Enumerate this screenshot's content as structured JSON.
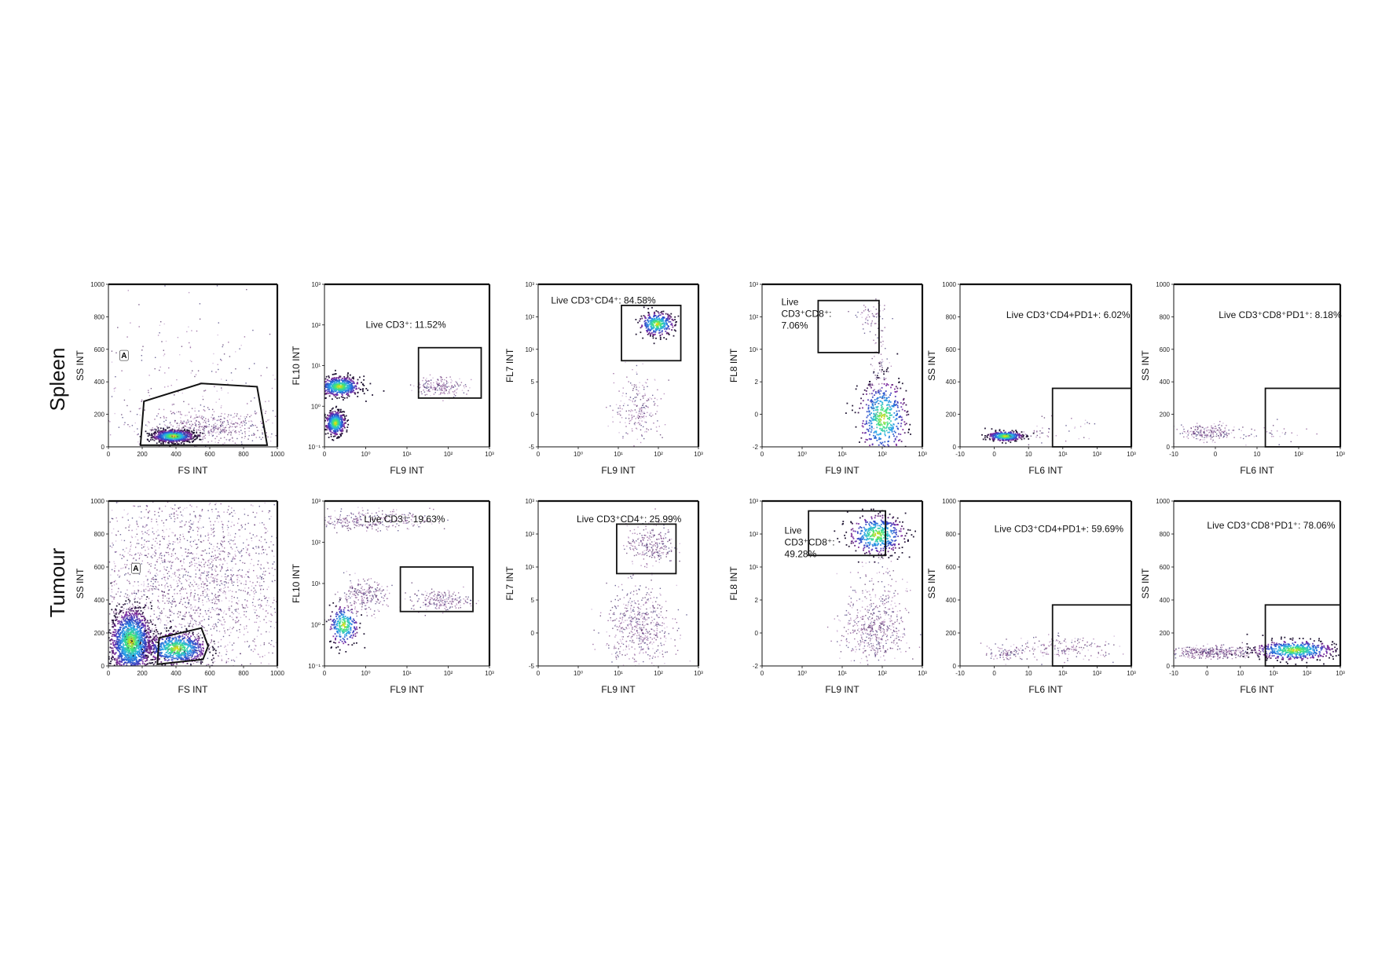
{
  "rows": [
    {
      "label": "Spleen"
    },
    {
      "label": "Tumour"
    }
  ],
  "chart_data": [
    {
      "type": "scatter",
      "row": "Spleen",
      "panel": 1,
      "xlabel": "FS INT",
      "ylabel": "SS INT",
      "x_ticks": [
        "0",
        "200",
        "400",
        "600",
        "800",
        "1000"
      ],
      "y_ticks": [
        "0",
        "200",
        "400",
        "600",
        "800",
        "1000"
      ],
      "xlim": [
        0,
        1000
      ],
      "ylim": [
        0,
        1000
      ],
      "gate_label": "A",
      "gate_text": "",
      "clusters": [
        {
          "x": 380,
          "y": 70,
          "spread": [
            60,
            18
          ],
          "n": 900,
          "dense": true
        },
        {
          "x": 600,
          "y": 120,
          "spread": [
            200,
            50
          ],
          "n": 500,
          "dense": false
        },
        {
          "x": 500,
          "y": 350,
          "spread": [
            350,
            250
          ],
          "n": 250,
          "dense": false
        }
      ]
    },
    {
      "type": "scatter",
      "row": "Spleen",
      "panel": 2,
      "xlabel": "FL9 INT",
      "ylabel": "FL10 INT",
      "x_ticks": [
        "0",
        "10⁰",
        "10¹",
        "10²",
        "10³"
      ],
      "y_ticks": [
        "10⁻¹",
        "10⁰",
        "10¹",
        "10²",
        "10³"
      ],
      "xlim": [
        0,
        4
      ],
      "ylim": [
        0,
        4
      ],
      "gate_label": "",
      "gate_text": "Live CD3⁺: 11.52%",
      "clusters": [
        {
          "x": 0.35,
          "y": 1.5,
          "spread": [
            0.25,
            0.12
          ],
          "n": 600,
          "dense": true
        },
        {
          "x": 0.25,
          "y": 0.6,
          "spread": [
            0.12,
            0.15
          ],
          "n": 450,
          "dense": true
        },
        {
          "x": 2.8,
          "y": 1.5,
          "spread": [
            0.3,
            0.12
          ],
          "n": 200,
          "dense": false
        }
      ]
    },
    {
      "type": "scatter",
      "row": "Spleen",
      "panel": 3,
      "xlabel": "FL9 INT",
      "ylabel": "FL7 INT",
      "x_ticks": [
        "0",
        "10⁰",
        "10¹",
        "10²",
        "10³"
      ],
      "y_ticks": [
        "-5",
        "0",
        "5",
        "10¹",
        "10²",
        "10³"
      ],
      "xlim": [
        0,
        4
      ],
      "ylim": [
        0,
        5
      ],
      "gate_label": "",
      "gate_text": "Live CD3⁺CD4⁺: 84.58%",
      "clusters": [
        {
          "x": 2.95,
          "y": 3.8,
          "spread": [
            0.22,
            0.18
          ],
          "n": 350,
          "dense": true
        },
        {
          "x": 2.5,
          "y": 1.2,
          "spread": [
            0.3,
            0.5
          ],
          "n": 220,
          "dense": false
        }
      ]
    },
    {
      "type": "scatter",
      "row": "Spleen",
      "panel": 4,
      "xlabel": "FL9 INT",
      "ylabel": "FL8 INT",
      "x_ticks": [
        "0",
        "10⁰",
        "10¹",
        "10²",
        "10³"
      ],
      "y_ticks": [
        "-2",
        "0",
        "2",
        "10¹",
        "10²",
        "10³"
      ],
      "xlim": [
        0,
        4
      ],
      "ylim": [
        0,
        5
      ],
      "gate_label": "",
      "gate_text": "Live\nCD3⁺CD8⁺:\n7.06%",
      "clusters": [
        {
          "x": 3.0,
          "y": 0.9,
          "spread": [
            0.3,
            0.6
          ],
          "n": 500,
          "dense": true
        },
        {
          "x": 2.75,
          "y": 4.0,
          "spread": [
            0.2,
            0.15
          ],
          "n": 60,
          "dense": false
        },
        {
          "x": 2.9,
          "y": 2.5,
          "spread": [
            0.15,
            0.8
          ],
          "n": 80,
          "dense": false
        }
      ]
    },
    {
      "type": "scatter",
      "row": "Spleen",
      "panel": 5,
      "xlabel": "FL6 INT",
      "ylabel": "SS INT",
      "x_ticks": [
        "-10",
        "0",
        "10",
        "10¹",
        "10²",
        "10³"
      ],
      "y_ticks": [
        "0",
        "200",
        "400",
        "600",
        "800",
        "1000"
      ],
      "xlim": [
        0,
        5
      ],
      "ylim": [
        0,
        1000
      ],
      "gate_label": "",
      "gate_text": "Live CD3⁺CD4+PD1+: 6.02%",
      "clusters": [
        {
          "x": 1.3,
          "y": 70,
          "spread": [
            0.25,
            15
          ],
          "n": 350,
          "dense": true
        },
        {
          "x": 2.5,
          "y": 100,
          "spread": [
            0.6,
            40
          ],
          "n": 50,
          "dense": false
        }
      ]
    },
    {
      "type": "scatter",
      "row": "Spleen",
      "panel": 6,
      "xlabel": "FL6 INT",
      "ylabel": "SS INT",
      "x_ticks": [
        "-10",
        "0",
        "10",
        "10²",
        "10³"
      ],
      "y_ticks": [
        "0",
        "200",
        "400",
        "600",
        "800",
        "1000"
      ],
      "xlim": [
        0,
        5
      ],
      "ylim": [
        0,
        1000
      ],
      "gate_label": "",
      "gate_text": "Live CD3⁺CD8⁺PD1⁺: 8.18%",
      "clusters": [
        {
          "x": 1.0,
          "y": 90,
          "spread": [
            0.45,
            25
          ],
          "n": 220,
          "dense": false
        },
        {
          "x": 3.0,
          "y": 90,
          "spread": [
            0.5,
            30
          ],
          "n": 30,
          "dense": false
        }
      ]
    },
    {
      "type": "scatter",
      "row": "Tumour",
      "panel": 1,
      "xlabel": "FS INT",
      "ylabel": "SS INT",
      "x_ticks": [
        "0",
        "200",
        "400",
        "600",
        "800",
        "1000"
      ],
      "y_ticks": [
        "0",
        "200",
        "400",
        "600",
        "800",
        "1000"
      ],
      "xlim": [
        0,
        1000
      ],
      "ylim": [
        0,
        1000
      ],
      "gate_label": "A",
      "gate_text": "",
      "clusters": [
        {
          "x": 130,
          "y": 150,
          "spread": [
            60,
            100
          ],
          "n": 1400,
          "dense": true
        },
        {
          "x": 400,
          "y": 110,
          "spread": [
            90,
            50
          ],
          "n": 700,
          "dense": true
        },
        {
          "x": 500,
          "y": 500,
          "spread": [
            350,
            320
          ],
          "n": 2600,
          "dense": false
        }
      ]
    },
    {
      "type": "scatter",
      "row": "Tumour",
      "panel": 2,
      "xlabel": "FL9 INT",
      "ylabel": "FL10 INT",
      "x_ticks": [
        "0",
        "10⁰",
        "10¹",
        "10²",
        "10³"
      ],
      "y_ticks": [
        "10⁻¹",
        "10⁰",
        "10¹",
        "10²",
        "10³"
      ],
      "xlim": [
        0,
        4
      ],
      "ylim": [
        0,
        4
      ],
      "gate_label": "",
      "gate_text": "Live CD3⁺: 19.63%",
      "clusters": [
        {
          "x": 1.0,
          "y": 3.55,
          "spread": [
            0.8,
            0.12
          ],
          "n": 350,
          "dense": false
        },
        {
          "x": 0.9,
          "y": 1.7,
          "spread": [
            0.3,
            0.2
          ],
          "n": 250,
          "dense": false
        },
        {
          "x": 0.45,
          "y": 1.0,
          "spread": [
            0.18,
            0.25
          ],
          "n": 250,
          "dense": true
        },
        {
          "x": 2.8,
          "y": 1.6,
          "spread": [
            0.35,
            0.12
          ],
          "n": 220,
          "dense": false
        }
      ]
    },
    {
      "type": "scatter",
      "row": "Tumour",
      "panel": 3,
      "xlabel": "FL9 INT",
      "ylabel": "FL7 INT",
      "x_ticks": [
        "0",
        "10⁰",
        "10¹",
        "10²",
        "10³"
      ],
      "y_ticks": [
        "-5",
        "0",
        "5",
        "10¹",
        "10²",
        "10³"
      ],
      "xlim": [
        0,
        4
      ],
      "ylim": [
        0,
        5
      ],
      "gate_label": "",
      "gate_text": "Live CD3⁺CD4⁺: 25.99%",
      "clusters": [
        {
          "x": 2.8,
          "y": 3.7,
          "spread": [
            0.3,
            0.3
          ],
          "n": 260,
          "dense": false
        },
        {
          "x": 2.5,
          "y": 1.2,
          "spread": [
            0.4,
            0.6
          ],
          "n": 550,
          "dense": false
        }
      ]
    },
    {
      "type": "scatter",
      "row": "Tumour",
      "panel": 4,
      "xlabel": "FL9 INT",
      "ylabel": "FL8 INT",
      "x_ticks": [
        "0",
        "10⁰",
        "10¹",
        "10²",
        "10³"
      ],
      "y_ticks": [
        "-2",
        "0",
        "2",
        "10¹",
        "10²",
        "10³"
      ],
      "xlim": [
        0,
        4
      ],
      "ylim": [
        0,
        5
      ],
      "gate_label": "",
      "gate_text": "Live\nCD3⁺CD8⁺:\n49.28%",
      "clusters": [
        {
          "x": 2.85,
          "y": 4.0,
          "spread": [
            0.35,
            0.3
          ],
          "n": 450,
          "dense": true
        },
        {
          "x": 2.8,
          "y": 1.1,
          "spread": [
            0.4,
            0.5
          ],
          "n": 480,
          "dense": false
        },
        {
          "x": 2.9,
          "y": 2.5,
          "spread": [
            0.4,
            0.6
          ],
          "n": 90,
          "dense": false
        }
      ]
    },
    {
      "type": "scatter",
      "row": "Tumour",
      "panel": 5,
      "xlabel": "FL6 INT",
      "ylabel": "SS INT",
      "x_ticks": [
        "-10",
        "0",
        "10",
        "10¹",
        "10²",
        "10³"
      ],
      "y_ticks": [
        "0",
        "200",
        "400",
        "600",
        "800",
        "1000"
      ],
      "xlim": [
        0,
        5
      ],
      "ylim": [
        0,
        1000
      ],
      "gate_label": "",
      "gate_text": "Live CD3⁺CD4+PD1+: 59.69%",
      "clusters": [
        {
          "x": 1.3,
          "y": 80,
          "spread": [
            0.25,
            20
          ],
          "n": 80,
          "dense": false
        },
        {
          "x": 3.0,
          "y": 110,
          "spread": [
            0.8,
            35
          ],
          "n": 200,
          "dense": false
        }
      ]
    },
    {
      "type": "scatter",
      "row": "Tumour",
      "panel": 6,
      "xlabel": "FL6 INT",
      "ylabel": "SS INT",
      "x_ticks": [
        "-10",
        "0",
        "10",
        "10¹",
        "10²",
        "10³"
      ],
      "y_ticks": [
        "0",
        "200",
        "400",
        "600",
        "800",
        "1000"
      ],
      "xlim": [
        0,
        5
      ],
      "ylim": [
        0,
        1000
      ],
      "gate_label": "",
      "gate_text": "Live CD3⁺CD8⁺PD1⁺: 78.06%",
      "clusters": [
        {
          "x": 1.2,
          "y": 85,
          "spread": [
            0.7,
            18
          ],
          "n": 420,
          "dense": false
        },
        {
          "x": 3.6,
          "y": 100,
          "spread": [
            0.6,
            30
          ],
          "n": 520,
          "dense": true
        }
      ]
    }
  ]
}
